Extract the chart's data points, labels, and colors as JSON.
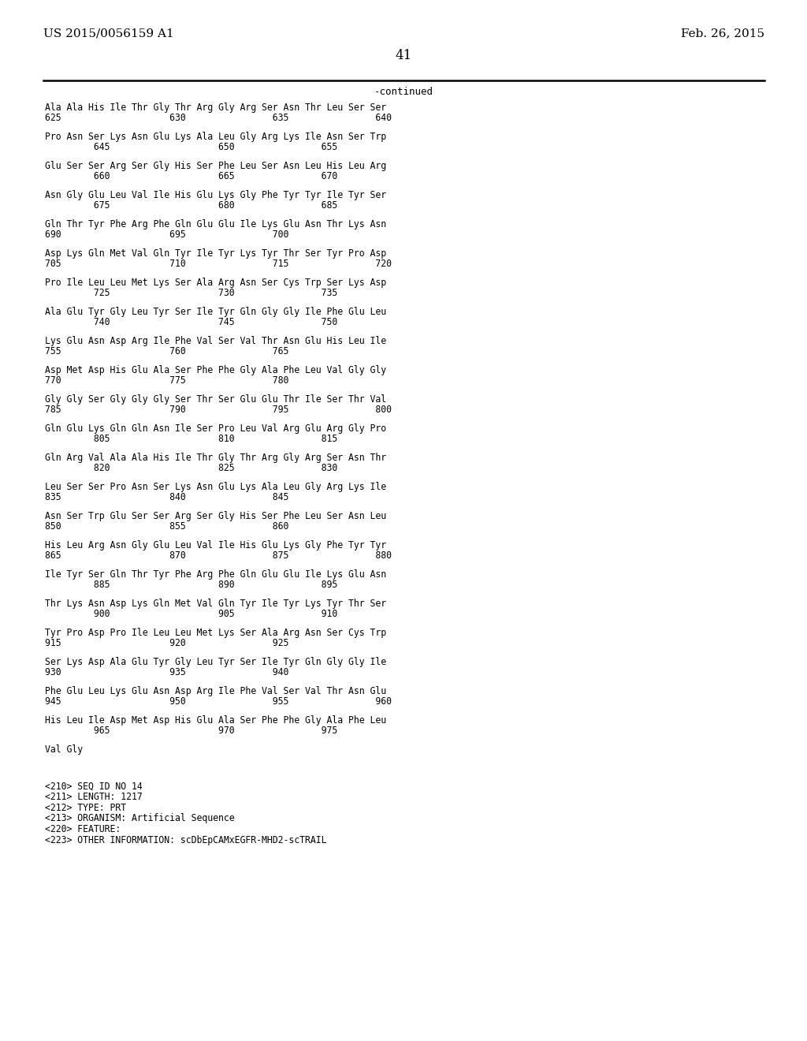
{
  "header_left": "US 2015/0056159 A1",
  "header_right": "Feb. 26, 2015",
  "page_number": "41",
  "continued_label": "-continued",
  "background_color": "#ffffff",
  "text_color": "#000000",
  "sequence_data": [
    [
      "Ala Ala His Ile Thr Gly Thr Arg Gly Arg Ser Asn Thr Leu Ser Ser",
      "625                    630                635                640"
    ],
    [
      "Pro Asn Ser Lys Asn Glu Lys Ala Leu Gly Arg Lys Ile Asn Ser Trp",
      "         645                    650                655"
    ],
    [
      "Glu Ser Ser Arg Ser Gly His Ser Phe Leu Ser Asn Leu His Leu Arg",
      "         660                    665                670"
    ],
    [
      "Asn Gly Glu Leu Val Ile His Glu Lys Gly Phe Tyr Tyr Ile Tyr Ser",
      "         675                    680                685"
    ],
    [
      "Gln Thr Tyr Phe Arg Phe Gln Glu Glu Ile Lys Glu Asn Thr Lys Asn",
      "690                    695                700"
    ],
    [
      "Asp Lys Gln Met Val Gln Tyr Ile Tyr Lys Tyr Thr Ser Tyr Pro Asp",
      "705                    710                715                720"
    ],
    [
      "Pro Ile Leu Leu Met Lys Ser Ala Arg Asn Ser Cys Trp Ser Lys Asp",
      "         725                    730                735"
    ],
    [
      "Ala Glu Tyr Gly Leu Tyr Ser Ile Tyr Gln Gly Gly Ile Phe Glu Leu",
      "         740                    745                750"
    ],
    [
      "Lys Glu Asn Asp Arg Ile Phe Val Ser Val Thr Asn Glu His Leu Ile",
      "755                    760                765"
    ],
    [
      "Asp Met Asp His Glu Ala Ser Phe Phe Gly Ala Phe Leu Val Gly Gly",
      "770                    775                780"
    ],
    [
      "Gly Gly Ser Gly Gly Gly Ser Thr Ser Glu Glu Thr Ile Ser Thr Val",
      "785                    790                795                800"
    ],
    [
      "Gln Glu Lys Gln Gln Asn Ile Ser Pro Leu Val Arg Glu Arg Gly Pro",
      "         805                    810                815"
    ],
    [
      "Gln Arg Val Ala Ala His Ile Thr Gly Thr Arg Gly Arg Ser Asn Thr",
      "         820                    825                830"
    ],
    [
      "Leu Ser Ser Pro Asn Ser Lys Asn Glu Lys Ala Leu Gly Arg Lys Ile",
      "835                    840                845"
    ],
    [
      "Asn Ser Trp Glu Ser Ser Arg Ser Gly His Ser Phe Leu Ser Asn Leu",
      "850                    855                860"
    ],
    [
      "His Leu Arg Asn Gly Glu Leu Val Ile His Glu Lys Gly Phe Tyr Tyr",
      "865                    870                875                880"
    ],
    [
      "Ile Tyr Ser Gln Thr Tyr Phe Arg Phe Gln Glu Glu Ile Lys Glu Asn",
      "         885                    890                895"
    ],
    [
      "Thr Lys Asn Asp Lys Gln Met Val Gln Tyr Ile Tyr Lys Tyr Thr Ser",
      "         900                    905                910"
    ],
    [
      "Tyr Pro Asp Pro Ile Leu Leu Met Lys Ser Ala Arg Asn Ser Cys Trp",
      "915                    920                925"
    ],
    [
      "Ser Lys Asp Ala Glu Tyr Gly Leu Tyr Ser Ile Tyr Gln Gly Gly Ile",
      "930                    935                940"
    ],
    [
      "Phe Glu Leu Lys Glu Asn Asp Arg Ile Phe Val Ser Val Thr Asn Glu",
      "945                    950                955                960"
    ],
    [
      "His Leu Ile Asp Met Asp His Glu Ala Ser Phe Phe Gly Ala Phe Leu",
      "         965                    970                975"
    ],
    [
      "Val Gly",
      ""
    ]
  ],
  "footer_lines": [
    "<210> SEQ ID NO 14",
    "<211> LENGTH: 1217",
    "<212> TYPE: PRT",
    "<213> ORGANISM: Artificial Sequence",
    "<220> FEATURE:",
    "<223> OTHER INFORMATION: scDbEpCAMxEGFR-MHD2-scTRAIL"
  ]
}
